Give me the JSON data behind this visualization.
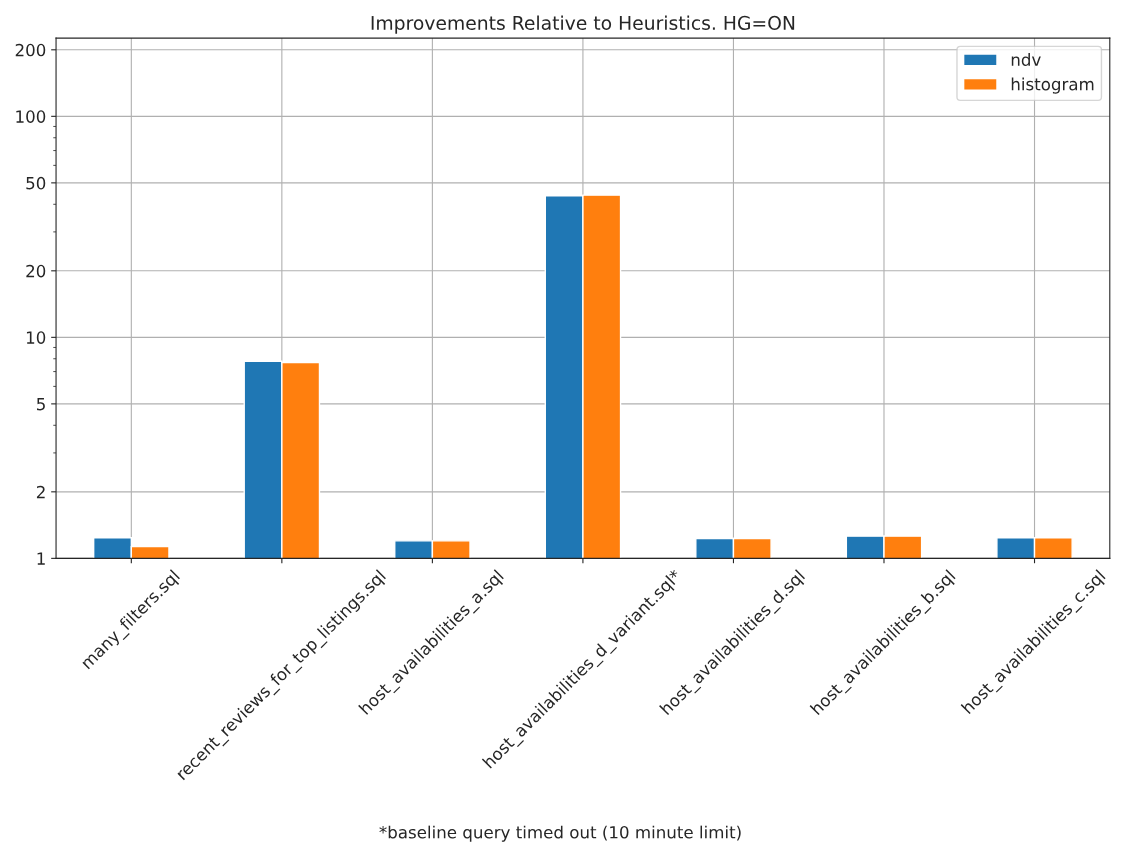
{
  "chart_data": {
    "type": "bar",
    "title": "Improvements Relative to Heuristics. HG=ON",
    "categories": [
      "many_filters.sql",
      "recent_reviews_for_top_listings.sql",
      "host_availabilities_a.sql",
      "host_availabilities_d_variant.sql*",
      "host_availabilities_d.sql",
      "host_availabilities_b.sql",
      "host_availabilities_c.sql"
    ],
    "series": [
      {
        "name": "ndv",
        "color": "#1f77b4",
        "values": [
          1.24,
          7.8,
          1.2,
          43.7,
          1.23,
          1.26,
          1.24
        ]
      },
      {
        "name": "histogram",
        "color": "#ff7f0e",
        "values": [
          1.13,
          7.7,
          1.2,
          44,
          1.23,
          1.26,
          1.24
        ]
      }
    ],
    "log": "y",
    "ylim": [
      1,
      226
    ],
    "yticks": [
      1,
      2,
      5,
      10,
      20,
      50,
      100,
      200
    ],
    "grid": true,
    "legend": "top right",
    "annotations": [
      "*baseline query timed out (10 minute limit)"
    ]
  }
}
